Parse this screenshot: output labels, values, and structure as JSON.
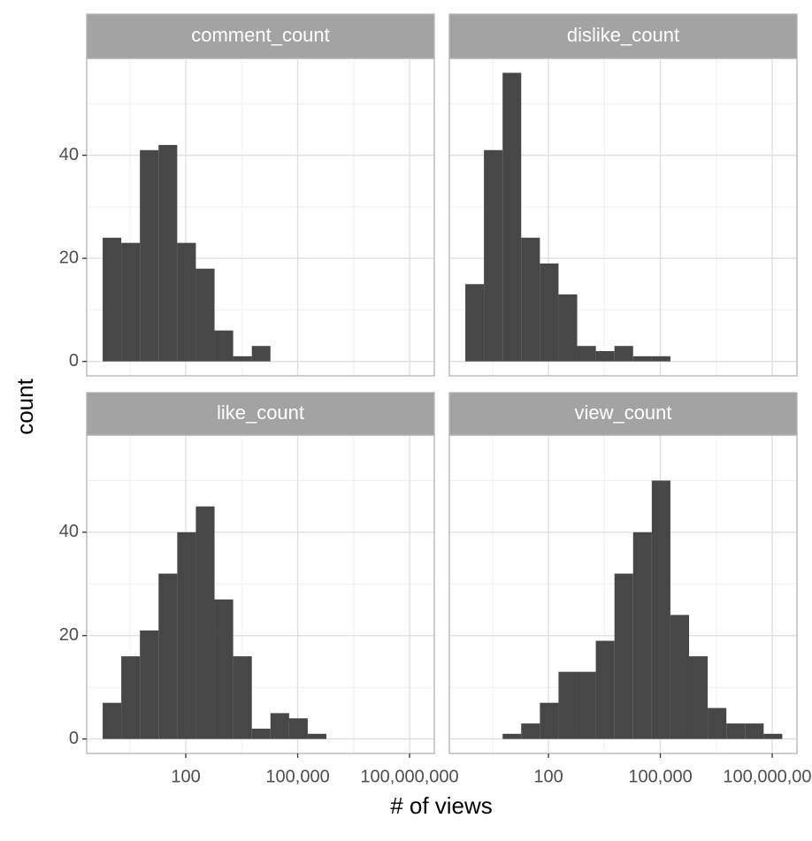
{
  "chart_data": {
    "type": "histogram",
    "xlabel": "# of views",
    "ylabel": "count",
    "log_x": true,
    "grid": true,
    "color": "#474747",
    "xlim": [
      0.22,
      460000000
    ],
    "xticks": [
      {
        "value": 100,
        "label": "100"
      },
      {
        "value": 100000,
        "label": "100,000"
      },
      {
        "value": 100000000,
        "label": "100,000,000"
      }
    ],
    "ylim": [
      -2.8,
      58.8
    ],
    "yticks": [
      0,
      20,
      40
    ],
    "panels": [
      {
        "name": "comment_count",
        "bins": [
          0.59,
          1.86,
          5.89,
          18.6,
          58.9,
          186,
          589,
          1862,
          5890,
          18600
        ],
        "values": [
          24,
          23,
          41,
          42,
          23,
          18,
          6,
          1,
          3
        ]
      },
      {
        "name": "dislike_count",
        "bins": [
          0.59,
          1.86,
          5.89,
          18.6,
          58.9,
          186,
          589,
          1862,
          5890,
          18600,
          58900,
          186000
        ],
        "values": [
          15,
          41,
          56,
          24,
          19,
          13,
          3,
          2,
          3,
          1,
          1
        ]
      },
      {
        "name": "like_count",
        "bins": [
          0.59,
          1.86,
          5.89,
          18.6,
          58.9,
          186,
          589,
          1862,
          5890,
          18600,
          58900,
          186000,
          589000
        ],
        "values": [
          7,
          16,
          21,
          32,
          40,
          45,
          27,
          16,
          2,
          5,
          4,
          1
        ]
      },
      {
        "name": "view_count",
        "bins": [
          5.89,
          18.6,
          58.9,
          186,
          589,
          1862,
          5890,
          18600,
          58900,
          186000,
          589000,
          1860000,
          5890000,
          18600000,
          58900000,
          186000000
        ],
        "values": [
          1,
          3,
          7,
          13,
          13,
          19,
          32,
          40,
          50,
          24,
          16,
          6,
          3,
          3,
          1
        ]
      }
    ]
  }
}
